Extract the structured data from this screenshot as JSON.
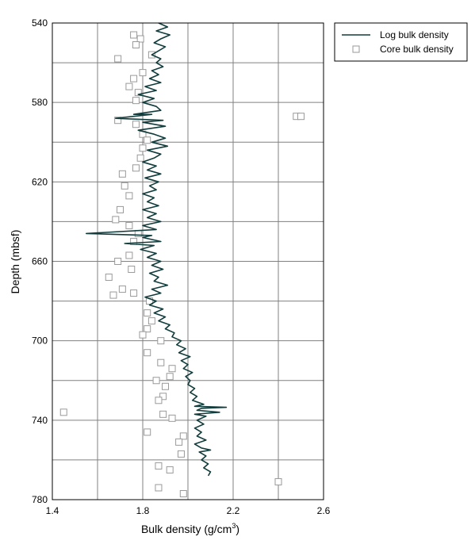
{
  "chart_data": {
    "type": "line",
    "xlabel": "Bulk density (g/cm",
    "xlabel_sup": "3",
    "xlabel_tail": ")",
    "ylabel": "Depth (mbsf)",
    "xlim": [
      1.4,
      2.6
    ],
    "ylim": [
      540,
      780
    ],
    "y_inverted": true,
    "grid": true,
    "legend_placement": "outside-top-right",
    "x_ticks": [
      "1.4",
      "1.8",
      "2.2",
      "2.6"
    ],
    "x_tick_values": [
      1.4,
      1.8,
      2.2,
      2.6
    ],
    "y_ticks": [
      "540",
      "580",
      "620",
      "660",
      "700",
      "740",
      "780"
    ],
    "y_tick_values": [
      540,
      580,
      620,
      660,
      700,
      740,
      780
    ],
    "colors": {
      "log": "#123c3c",
      "core_marker": "#9a9a9a",
      "grid": "#808080"
    },
    "series": [
      {
        "name": "Log bulk density",
        "kind": "line",
        "points": [
          [
            1.87,
            540
          ],
          [
            1.91,
            542
          ],
          [
            1.86,
            544
          ],
          [
            1.92,
            546
          ],
          [
            1.88,
            548
          ],
          [
            1.85,
            550
          ],
          [
            1.9,
            552
          ],
          [
            1.87,
            554
          ],
          [
            1.84,
            556
          ],
          [
            1.88,
            558
          ],
          [
            1.86,
            560
          ],
          [
            1.89,
            562
          ],
          [
            1.84,
            564
          ],
          [
            1.87,
            566
          ],
          [
            1.83,
            568
          ],
          [
            1.88,
            570
          ],
          [
            1.81,
            572
          ],
          [
            1.86,
            574
          ],
          [
            1.78,
            576
          ],
          [
            1.85,
            578
          ],
          [
            1.8,
            580
          ],
          [
            1.86,
            582
          ],
          [
            1.88,
            584
          ],
          [
            1.76,
            586
          ],
          [
            1.84,
            586
          ],
          [
            1.68,
            588
          ],
          [
            1.89,
            589
          ],
          [
            1.8,
            590
          ],
          [
            1.9,
            592
          ],
          [
            1.78,
            594
          ],
          [
            1.85,
            596
          ],
          [
            1.9,
            598
          ],
          [
            1.84,
            600
          ],
          [
            1.91,
            602
          ],
          [
            1.82,
            604
          ],
          [
            1.88,
            606
          ],
          [
            1.85,
            608
          ],
          [
            1.8,
            610
          ],
          [
            1.86,
            612
          ],
          [
            1.82,
            614
          ],
          [
            1.88,
            616
          ],
          [
            1.81,
            618
          ],
          [
            1.87,
            620
          ],
          [
            1.83,
            622
          ],
          [
            1.86,
            624
          ],
          [
            1.8,
            626
          ],
          [
            1.85,
            628
          ],
          [
            1.82,
            630
          ],
          [
            1.87,
            632
          ],
          [
            1.8,
            634
          ],
          [
            1.86,
            636
          ],
          [
            1.82,
            638
          ],
          [
            1.88,
            640
          ],
          [
            1.8,
            642
          ],
          [
            1.86,
            644
          ],
          [
            1.55,
            646
          ],
          [
            1.84,
            647
          ],
          [
            1.8,
            648
          ],
          [
            1.88,
            650
          ],
          [
            1.72,
            651
          ],
          [
            1.85,
            652
          ],
          [
            1.79,
            654
          ],
          [
            1.86,
            656
          ],
          [
            1.82,
            658
          ],
          [
            1.88,
            660
          ],
          [
            1.84,
            662
          ],
          [
            1.89,
            664
          ],
          [
            1.83,
            666
          ],
          [
            1.87,
            668
          ],
          [
            1.85,
            670
          ],
          [
            1.91,
            672
          ],
          [
            1.84,
            674
          ],
          [
            1.88,
            676
          ],
          [
            1.81,
            678
          ],
          [
            1.86,
            680
          ],
          [
            1.83,
            682
          ],
          [
            1.89,
            684
          ],
          [
            1.85,
            686
          ],
          [
            1.9,
            688
          ],
          [
            1.87,
            690
          ],
          [
            1.92,
            692
          ],
          [
            1.9,
            694
          ],
          [
            1.94,
            696
          ],
          [
            1.93,
            698
          ],
          [
            1.97,
            700
          ],
          [
            1.95,
            702
          ],
          [
            1.99,
            704
          ],
          [
            1.96,
            706
          ],
          [
            2.01,
            708
          ],
          [
            1.97,
            710
          ],
          [
            2.0,
            712
          ],
          [
            1.98,
            714
          ],
          [
            2.02,
            716
          ],
          [
            1.99,
            718
          ],
          [
            2.01,
            720
          ],
          [
            2.0,
            722
          ],
          [
            2.03,
            724
          ],
          [
            2.01,
            726
          ],
          [
            2.04,
            728
          ],
          [
            2.02,
            730
          ],
          [
            2.07,
            732
          ],
          [
            2.03,
            733
          ],
          [
            2.17,
            733.5
          ],
          [
            2.06,
            734
          ],
          [
            2.04,
            735
          ],
          [
            2.14,
            736
          ],
          [
            2.03,
            737
          ],
          [
            2.08,
            738
          ],
          [
            2.04,
            740
          ],
          [
            2.07,
            742
          ],
          [
            2.03,
            744
          ],
          [
            2.06,
            746
          ],
          [
            2.04,
            748
          ],
          [
            2.08,
            750
          ],
          [
            2.03,
            752
          ],
          [
            2.06,
            754
          ],
          [
            2.1,
            755
          ],
          [
            2.05,
            756
          ],
          [
            2.08,
            758
          ],
          [
            2.06,
            760
          ],
          [
            2.09,
            762
          ],
          [
            2.07,
            764
          ],
          [
            2.1,
            766
          ],
          [
            2.09,
            768
          ]
        ]
      },
      {
        "name": "Core bulk density",
        "kind": "scatter",
        "points": [
          [
            1.76,
            546
          ],
          [
            1.79,
            548
          ],
          [
            1.77,
            551
          ],
          [
            1.69,
            558
          ],
          [
            1.84,
            556
          ],
          [
            1.8,
            565
          ],
          [
            1.76,
            568
          ],
          [
            1.74,
            572
          ],
          [
            1.78,
            575
          ],
          [
            1.77,
            579
          ],
          [
            1.69,
            589
          ],
          [
            1.77,
            591
          ],
          [
            1.8,
            596
          ],
          [
            1.82,
            599
          ],
          [
            1.8,
            603
          ],
          [
            1.79,
            608
          ],
          [
            1.77,
            613
          ],
          [
            1.71,
            616
          ],
          [
            1.72,
            622
          ],
          [
            1.74,
            627
          ],
          [
            1.7,
            634
          ],
          [
            1.68,
            639
          ],
          [
            1.74,
            642
          ],
          [
            1.78,
            646
          ],
          [
            1.76,
            650
          ],
          [
            1.74,
            657
          ],
          [
            1.69,
            660
          ],
          [
            1.75,
            664
          ],
          [
            1.65,
            668
          ],
          [
            1.71,
            674
          ],
          [
            1.67,
            677
          ],
          [
            1.76,
            676
          ],
          [
            1.83,
            680
          ],
          [
            1.82,
            686
          ],
          [
            1.84,
            690
          ],
          [
            1.82,
            694
          ],
          [
            1.8,
            697
          ],
          [
            1.88,
            700
          ],
          [
            1.82,
            706
          ],
          [
            1.88,
            711
          ],
          [
            1.93,
            714
          ],
          [
            1.92,
            718
          ],
          [
            1.86,
            720
          ],
          [
            1.9,
            723
          ],
          [
            1.89,
            728
          ],
          [
            1.87,
            730
          ],
          [
            1.89,
            737
          ],
          [
            1.93,
            739
          ],
          [
            1.82,
            746
          ],
          [
            1.98,
            748
          ],
          [
            1.96,
            751
          ],
          [
            1.97,
            757
          ],
          [
            1.87,
            763
          ],
          [
            1.92,
            765
          ],
          [
            1.87,
            774
          ],
          [
            1.98,
            777
          ],
          [
            2.48,
            587
          ],
          [
            2.5,
            587
          ],
          [
            1.45,
            736
          ],
          [
            2.4,
            771
          ]
        ]
      }
    ]
  }
}
